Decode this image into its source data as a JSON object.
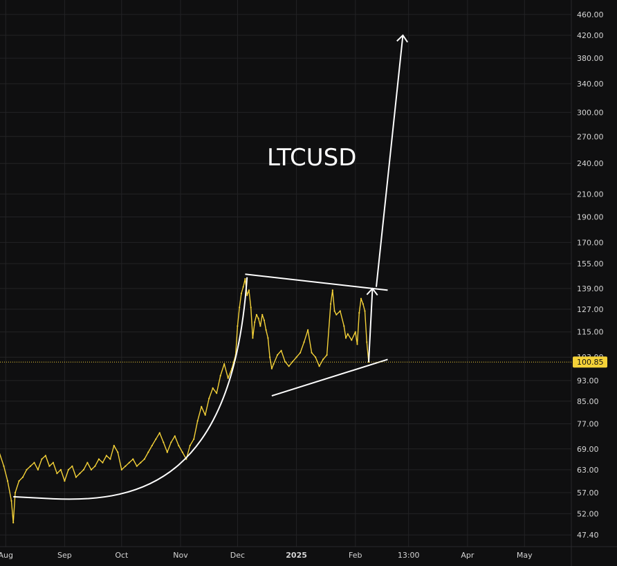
{
  "chart_data": {
    "type": "line",
    "title": "LTCUSD",
    "symbol": "LTCUSD",
    "xlabel": "",
    "ylabel": "",
    "y_scale": "log",
    "ylim": [
      46,
      490
    ],
    "y_ticks": [
      47.4,
      52.0,
      57.0,
      63.0,
      69.0,
      77.0,
      85.0,
      93.0,
      103.0,
      115.0,
      127.0,
      139.0,
      155.0,
      170.0,
      190.0,
      210.0,
      240.0,
      270.0,
      300.0,
      340.0,
      380.0,
      420.0,
      460.0
    ],
    "y_tick_labels": [
      "47.40",
      "52.00",
      "57.00",
      "63.00",
      "69.00",
      "77.00",
      "85.00",
      "93.00",
      "103.00",
      "115.00",
      "127.00",
      "139.00",
      "155.00",
      "170.00",
      "190.00",
      "210.00",
      "240.00",
      "270.00",
      "300.00",
      "340.00",
      "380.00",
      "420.00",
      "460.00"
    ],
    "x_ticks": [
      {
        "label": "Aug",
        "date": "2024-08-01",
        "bold": false
      },
      {
        "label": "Sep",
        "date": "2024-09-01",
        "bold": false
      },
      {
        "label": "Oct",
        "date": "2024-10-01",
        "bold": false
      },
      {
        "label": "Nov",
        "date": "2024-11-01",
        "bold": false
      },
      {
        "label": "Dec",
        "date": "2024-12-01",
        "bold": false
      },
      {
        "label": "2025",
        "date": "2025-01-01",
        "bold": true
      },
      {
        "label": "Feb",
        "date": "2025-02-01",
        "bold": false
      },
      {
        "label": "13:00",
        "date": "2025-03-01",
        "bold": false
      },
      {
        "label": "Apr",
        "date": "2025-04-01",
        "bold": false
      },
      {
        "label": "May",
        "date": "2025-05-01",
        "bold": false
      }
    ],
    "xlim": [
      "2024-07-29",
      "2025-05-22"
    ],
    "grid": true,
    "current_price": 100.85,
    "current_price_label": "100.85",
    "series": [
      {
        "color": "#f5d238",
        "points": [
          [
            "2024-07-20",
            72
          ],
          [
            "2024-07-24",
            76
          ],
          [
            "2024-07-28",
            69
          ],
          [
            "2024-07-31",
            64
          ],
          [
            "2024-08-02",
            60
          ],
          [
            "2024-08-04",
            55
          ],
          [
            "2024-08-05",
            50
          ],
          [
            "2024-08-06",
            57
          ],
          [
            "2024-08-08",
            60
          ],
          [
            "2024-08-10",
            61
          ],
          [
            "2024-08-12",
            63
          ],
          [
            "2024-08-14",
            64
          ],
          [
            "2024-08-16",
            65
          ],
          [
            "2024-08-18",
            63
          ],
          [
            "2024-08-20",
            66
          ],
          [
            "2024-08-22",
            67
          ],
          [
            "2024-08-24",
            64
          ],
          [
            "2024-08-26",
            65
          ],
          [
            "2024-08-28",
            62
          ],
          [
            "2024-08-30",
            63
          ],
          [
            "2024-09-01",
            60
          ],
          [
            "2024-09-03",
            63
          ],
          [
            "2024-09-05",
            64
          ],
          [
            "2024-09-07",
            61
          ],
          [
            "2024-09-09",
            62
          ],
          [
            "2024-09-11",
            63
          ],
          [
            "2024-09-13",
            65
          ],
          [
            "2024-09-15",
            63
          ],
          [
            "2024-09-17",
            64
          ],
          [
            "2024-09-19",
            66
          ],
          [
            "2024-09-21",
            65
          ],
          [
            "2024-09-23",
            67
          ],
          [
            "2024-09-25",
            66
          ],
          [
            "2024-09-27",
            70
          ],
          [
            "2024-09-29",
            68
          ],
          [
            "2024-10-01",
            63
          ],
          [
            "2024-10-03",
            64
          ],
          [
            "2024-10-05",
            65
          ],
          [
            "2024-10-07",
            66
          ],
          [
            "2024-10-09",
            64
          ],
          [
            "2024-10-11",
            65
          ],
          [
            "2024-10-13",
            66
          ],
          [
            "2024-10-15",
            68
          ],
          [
            "2024-10-17",
            70
          ],
          [
            "2024-10-19",
            72
          ],
          [
            "2024-10-21",
            74
          ],
          [
            "2024-10-23",
            71
          ],
          [
            "2024-10-25",
            68
          ],
          [
            "2024-10-27",
            71
          ],
          [
            "2024-10-29",
            73
          ],
          [
            "2024-10-31",
            70
          ],
          [
            "2024-11-02",
            68
          ],
          [
            "2024-11-04",
            66
          ],
          [
            "2024-11-06",
            70
          ],
          [
            "2024-11-08",
            72
          ],
          [
            "2024-11-10",
            78
          ],
          [
            "2024-11-12",
            83
          ],
          [
            "2024-11-14",
            80
          ],
          [
            "2024-11-16",
            86
          ],
          [
            "2024-11-18",
            90
          ],
          [
            "2024-11-20",
            88
          ],
          [
            "2024-11-22",
            95
          ],
          [
            "2024-11-24",
            100
          ],
          [
            "2024-11-26",
            94
          ],
          [
            "2024-11-28",
            98
          ],
          [
            "2024-11-30",
            104
          ],
          [
            "2024-12-01",
            118
          ],
          [
            "2024-12-02",
            128
          ],
          [
            "2024-12-03",
            136
          ],
          [
            "2024-12-04",
            140
          ],
          [
            "2024-12-05",
            145
          ],
          [
            "2024-12-06",
            135
          ],
          [
            "2024-12-07",
            138
          ],
          [
            "2024-12-08",
            128
          ],
          [
            "2024-12-09",
            112
          ],
          [
            "2024-12-10",
            120
          ],
          [
            "2024-12-11",
            124
          ],
          [
            "2024-12-12",
            122
          ],
          [
            "2024-12-13",
            118
          ],
          [
            "2024-12-14",
            124
          ],
          [
            "2024-12-15",
            121
          ],
          [
            "2024-12-16",
            116
          ],
          [
            "2024-12-17",
            112
          ],
          [
            "2024-12-18",
            103
          ],
          [
            "2024-12-19",
            98
          ],
          [
            "2024-12-20",
            100
          ],
          [
            "2024-12-22",
            104
          ],
          [
            "2024-12-24",
            106
          ],
          [
            "2024-12-26",
            101
          ],
          [
            "2024-12-28",
            99
          ],
          [
            "2024-12-30",
            101
          ],
          [
            "2025-01-01",
            103
          ],
          [
            "2025-01-03",
            105
          ],
          [
            "2025-01-05",
            110
          ],
          [
            "2025-01-07",
            116
          ],
          [
            "2025-01-09",
            105
          ],
          [
            "2025-01-11",
            103
          ],
          [
            "2025-01-13",
            99
          ],
          [
            "2025-01-15",
            102
          ],
          [
            "2025-01-17",
            104
          ],
          [
            "2025-01-19",
            130
          ],
          [
            "2025-01-20",
            138
          ],
          [
            "2025-01-21",
            126
          ],
          [
            "2025-01-22",
            124
          ],
          [
            "2025-01-24",
            126
          ],
          [
            "2025-01-26",
            118
          ],
          [
            "2025-01-27",
            112
          ],
          [
            "2025-01-28",
            114
          ],
          [
            "2025-01-30",
            111
          ],
          [
            "2025-02-01",
            115
          ],
          [
            "2025-02-02",
            109
          ],
          [
            "2025-02-03",
            125
          ],
          [
            "2025-02-04",
            133
          ],
          [
            "2025-02-05",
            130
          ],
          [
            "2025-02-06",
            126
          ],
          [
            "2025-02-07",
            110
          ],
          [
            "2025-02-08",
            100.85
          ]
        ]
      }
    ],
    "annotations": {
      "cup_curve": {
        "start": [
          "2024-08-05",
          56
        ],
        "bottom": [
          "2024-08-26",
          55.5
        ],
        "end": [
          "2024-12-06",
          146
        ]
      },
      "upper_trendline": {
        "start": [
          "2024-12-05",
          148
        ],
        "end": [
          "2025-02-18",
          138
        ]
      },
      "lower_trendline": {
        "start": [
          "2024-12-19",
          87
        ],
        "end": [
          "2025-02-18",
          102
        ]
      },
      "small_arrow": {
        "start": [
          "2025-02-08",
          100.85
        ],
        "end": [
          "2025-02-10",
          139
        ]
      },
      "big_arrow": {
        "start": [
          "2025-02-12",
          140
        ],
        "end": [
          "2025-02-26",
          420
        ]
      }
    }
  },
  "colors": {
    "background": "#0f0f10",
    "grid": "#232325",
    "price_line": "#f5d238",
    "drawing": "#ffffff",
    "axis_text": "#d6d6d6"
  }
}
